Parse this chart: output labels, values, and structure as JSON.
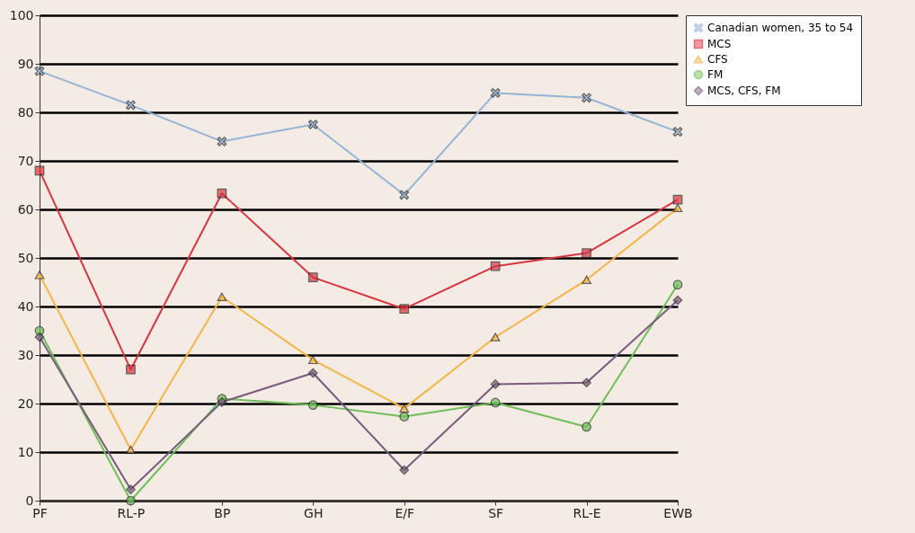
{
  "chart_data": {
    "type": "line",
    "categories": [
      "PF",
      "RL-P",
      "BP",
      "GH",
      "E/F",
      "SF",
      "RL-E",
      "EWB"
    ],
    "series": [
      {
        "name": "Canadian women, 35 to 54",
        "color": "#95b3d7",
        "marker": "cross",
        "values": [
          88.5,
          81.5,
          74,
          77.5,
          63,
          84,
          83,
          76
        ]
      },
      {
        "name": "MCS",
        "color": "#d9343f",
        "marker": "square",
        "values": [
          68,
          27,
          63.3,
          46,
          39.5,
          48.3,
          51,
          62
        ]
      },
      {
        "name": "CFS",
        "color": "#f5b445",
        "marker": "triangle",
        "values": [
          46.5,
          10.5,
          42,
          29,
          19,
          33.7,
          45.5,
          60.3
        ]
      },
      {
        "name": "FM",
        "color": "#6cbf58",
        "marker": "circle",
        "values": [
          35,
          0,
          21,
          19.7,
          17.3,
          20.2,
          15.2,
          44.5
        ]
      },
      {
        "name": "MCS, CFS, FM",
        "color": "#7a5a7e",
        "marker": "diamond",
        "values": [
          33.7,
          2.3,
          20.3,
          26.3,
          6.3,
          24,
          24.3,
          41.3
        ]
      }
    ],
    "ylim": [
      0,
      100
    ],
    "yticks": [
      0,
      10,
      20,
      30,
      40,
      50,
      60,
      70,
      80,
      90,
      100
    ],
    "grid": "y",
    "legend": "right"
  }
}
